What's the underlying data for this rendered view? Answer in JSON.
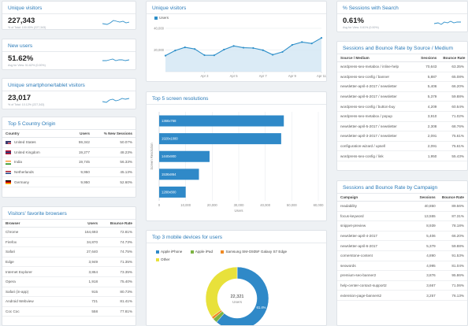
{
  "colors": {
    "accent": "#2b7bb9",
    "line": "#2e8fc9",
    "fill": "#cfe4f3",
    "bar": "#2f89c8"
  },
  "kpis": [
    {
      "title": "Unique visitors",
      "value": "227,343",
      "note": "% of Total: 100.00% (227,343)"
    },
    {
      "title": "New users",
      "value": "51.62%",
      "note": "Avg for View: 51.62% (0.00%)"
    },
    {
      "title": "Unique smartphone/tablet visitors",
      "value": "23,017",
      "note": "% of Total: 10.12% (227,343)"
    }
  ],
  "country_card": {
    "title": "Top 5 Country Origin",
    "headers": [
      "Country",
      "Users",
      "% New Sessions"
    ],
    "rows": [
      {
        "country": "United States",
        "users": "59,342",
        "pct": "50.07%"
      },
      {
        "country": "United Kingdom",
        "users": "19,277",
        "pct": "48.23%"
      },
      {
        "country": "India",
        "users": "19,745",
        "pct": "56.33%"
      },
      {
        "country": "Netherlands",
        "users": "9,950",
        "pct": "45.13%"
      },
      {
        "country": "Germany",
        "users": "9,950",
        "pct": "52.60%"
      }
    ]
  },
  "browsers_card": {
    "title": "Visitors' favorite browsers",
    "headers": [
      "Browser",
      "Users",
      "Bounce Rate"
    ],
    "rows": [
      {
        "browser": "Chrome",
        "users": "164,693",
        "rate": "72.81%"
      },
      {
        "browser": "Firefox",
        "users": "34,870",
        "rate": "74.73%"
      },
      {
        "browser": "Safari",
        "users": "27,640",
        "rate": "74.75%"
      },
      {
        "browser": "Edge",
        "users": "3,949",
        "rate": "71.35%"
      },
      {
        "browser": "Internet Explorer",
        "users": "3,864",
        "rate": "73.35%"
      },
      {
        "browser": "Opera",
        "users": "1,918",
        "rate": "75.40%"
      },
      {
        "browser": "Safari (in-app)",
        "users": "915",
        "rate": "80.73%"
      },
      {
        "browser": "Android Webview",
        "users": "721",
        "rate": "81.41%"
      },
      {
        "browser": "Coc Coc",
        "users": "558",
        "rate": "77.81%"
      }
    ]
  },
  "visitors_chart": {
    "title": "Unique visitors",
    "legend": "Users",
    "chart_data": {
      "type": "area",
      "series": [
        {
          "name": "Users",
          "values": [
            14800,
            19500,
            22400,
            20900,
            15200,
            15100,
            20300,
            23700,
            22100,
            21800,
            19800,
            15600,
            18200,
            24700,
            27300,
            26000,
            31100
          ]
        }
      ],
      "x_tick_labels": [
        "Apr 3",
        "Apr 5",
        "Apr 7",
        "Apr 9",
        "Apr 11"
      ],
      "y_tick_labels": [
        "20,000",
        "40,000"
      ],
      "ylim": [
        0,
        45000
      ]
    }
  },
  "resolutions_chart": {
    "title": "Top 5 screen resolutions",
    "ylabel": "Screen Resolution",
    "xlabel": "Users",
    "chart_data": {
      "type": "bar",
      "orientation": "horizontal",
      "categories": [
        "1366x768",
        "1920x1080",
        "1440x900",
        "1536x864",
        "1280x800"
      ],
      "values": [
        47000,
        46000,
        19000,
        15000,
        10000
      ],
      "x_tick_labels": [
        "0",
        "10,000",
        "20,000",
        "30,000",
        "40,000",
        "50,000",
        "60,000"
      ],
      "xlim": [
        0,
        60000
      ]
    }
  },
  "devices_chart": {
    "title": "Top 3 mobile devices for users",
    "center_value": "22,321",
    "center_label": "Users",
    "chart_data": {
      "type": "pie",
      "labels": [
        "Apple iPhone",
        "Apple iPad",
        "Samsung SM-G935F Galaxy S7 Edge",
        "Other"
      ],
      "values": [
        61.4,
        2.3,
        1.3,
        35.0
      ],
      "slice_label": "61.4%",
      "colors": [
        "#2f89c8",
        "#7cb342",
        "#f08a24",
        "#e8e13b"
      ]
    }
  },
  "sessions_card": {
    "title": "% Sessions with Search",
    "value": "0.61%",
    "note": "Avg for View: 0.61% (0.00%)"
  },
  "source_card": {
    "title": "Sessions and Bounce Rate by Source / Medium",
    "headers": [
      "Source / Medium",
      "Sessions",
      "Bounce Rate"
    ],
    "rows": [
      {
        "src": "wordpress-seo-metabox / inline-help",
        "sessions": "70,643",
        "rate": "63.35%"
      },
      {
        "src": "wordpress-seo-config / banner",
        "sessions": "5,887",
        "rate": "65.08%"
      },
      {
        "src": "newsletter-april-4-2017 / newsletter",
        "sessions": "5,406",
        "rate": "66.20%"
      },
      {
        "src": "newsletter-april-6-2017 / newsletter",
        "sessions": "5,379",
        "rate": "59.88%"
      },
      {
        "src": "wordpress-seo-config / button-buy",
        "sessions": "4,209",
        "rate": "60.54%"
      },
      {
        "src": "wordpress-seo-metabox / popup",
        "sessions": "3,910",
        "rate": "71.02%"
      },
      {
        "src": "newsletter-april-5-2017 / newsletter",
        "sessions": "2,308",
        "rate": "68.76%"
      },
      {
        "src": "newsletter-april-3-2017 / newsletter",
        "sessions": "2,091",
        "rate": "75.61%"
      },
      {
        "src": "configuration-wizard / upsell",
        "sessions": "2,091",
        "rate": "75.61%"
      },
      {
        "src": "wordpress-seo-config / link",
        "sessions": "1,950",
        "rate": "55.43%"
      }
    ]
  },
  "campaign_card": {
    "title": "Sessions and Bounce Rate by Campaign",
    "headers": [
      "Campaign",
      "Sessions",
      "Bounce Rate"
    ],
    "rows": [
      {
        "c": "readability",
        "sessions": "40,850",
        "rate": "89.56%"
      },
      {
        "c": "focus-keyword",
        "sessions": "13,555",
        "rate": "87.31%"
      },
      {
        "c": "snippet-preview",
        "sessions": "8,939",
        "rate": "78.18%"
      },
      {
        "c": "newsletter-april-4-2017",
        "sessions": "5,406",
        "rate": "66.20%"
      },
      {
        "c": "newsletter-april-6-2017",
        "sessions": "5,379",
        "rate": "59.88%"
      },
      {
        "c": "cornerstone-content",
        "sessions": "4,890",
        "rate": "91.53%"
      },
      {
        "c": "seowords",
        "sessions": "4,995",
        "rate": "81.04%"
      },
      {
        "c": "premium-seo-banner2",
        "sessions": "3,876",
        "rate": "95.86%"
      },
      {
        "c": "help-center-contact-support2",
        "sessions": "3,667",
        "rate": "71.06%"
      },
      {
        "c": "extension-page-banners2",
        "sessions": "3,257",
        "rate": "76.13%"
      }
    ]
  }
}
